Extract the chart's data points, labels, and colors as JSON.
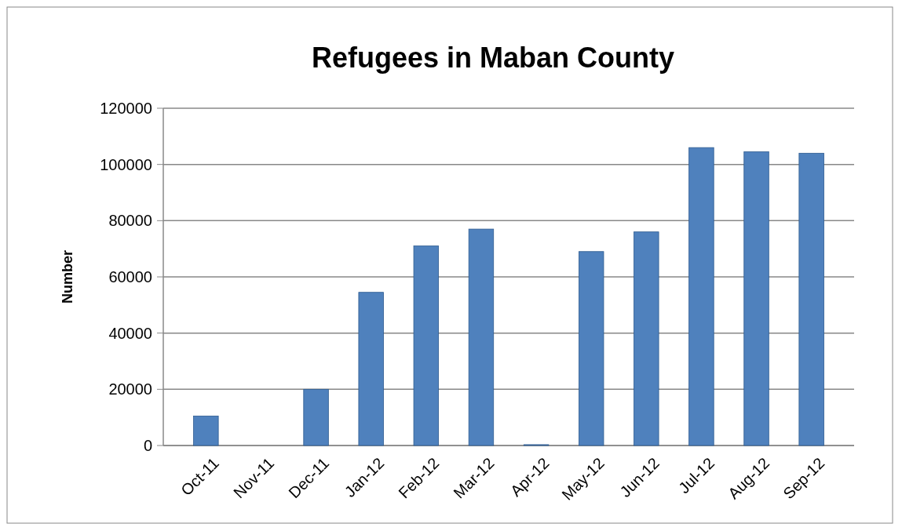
{
  "chart_data": {
    "type": "bar",
    "title": "Refugees in Maban County",
    "ylabel": "Number",
    "categories": [
      "Oct-11",
      "Nov-11",
      "Dec-11",
      "Jan-12",
      "Feb-12",
      "Mar-12",
      "Apr-12",
      "May-12",
      "Jun-12",
      "Jul-12",
      "Aug-12",
      "Sep-12"
    ],
    "values": [
      10500,
      null,
      20000,
      54500,
      71000,
      77000,
      300,
      69000,
      76000,
      106000,
      104500,
      104000
    ],
    "color": "#4f81bd",
    "ylim": [
      0,
      120000
    ],
    "yticks": [
      0,
      20000,
      40000,
      60000,
      80000,
      100000,
      120000
    ],
    "grid": "y"
  }
}
